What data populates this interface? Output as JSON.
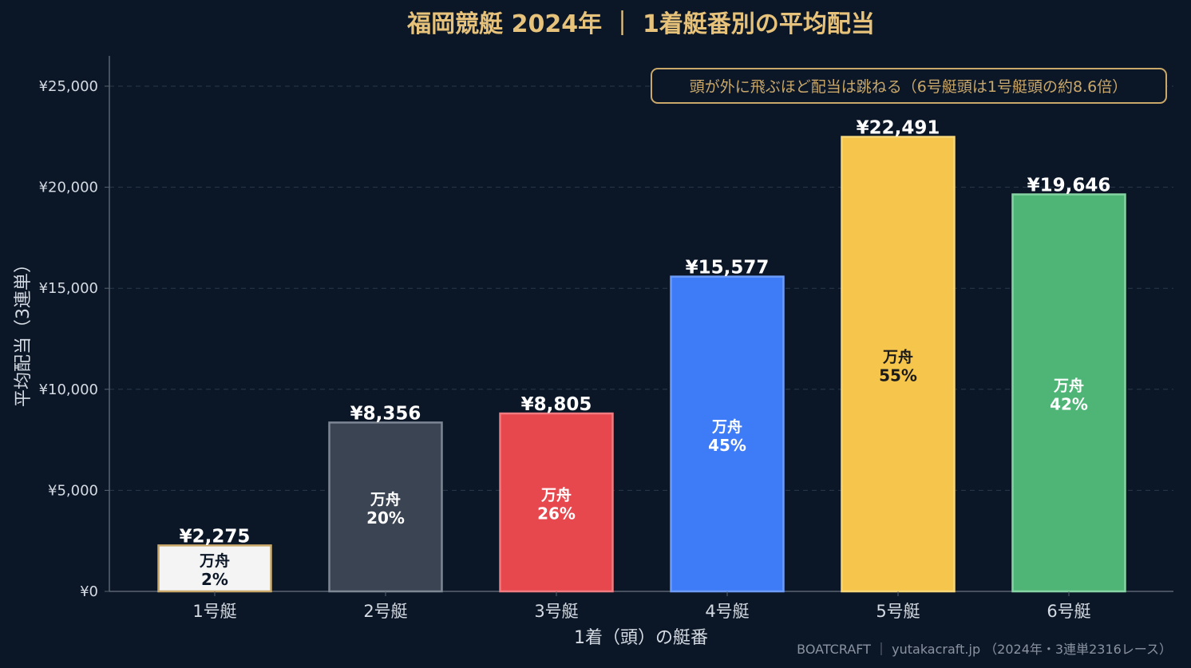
{
  "colors": {
    "background": "#0b1627",
    "title": "#e6c27a",
    "text": "#d5dbe3",
    "muted": "#8a93a0",
    "grid": "#2b3a4a",
    "axis": "#5a6470",
    "annotation_border": "#c9a86a",
    "annotation_text": "#c9a86a"
  },
  "chart_data": {
    "type": "bar",
    "title": "福岡競艇 2024年 ｜ 1着艇番別の平均配当",
    "xlabel": "1着（頭）の艇番",
    "ylabel": "平均配当（3連単）",
    "ylim": [
      0,
      26500
    ],
    "yticks": [
      0,
      5000,
      10000,
      15000,
      20000,
      25000
    ],
    "ytick_labels": [
      "¥0",
      "¥5,000",
      "¥10,000",
      "¥15,000",
      "¥20,000",
      "¥25,000"
    ],
    "grid": true,
    "categories": [
      "1号艇",
      "2号艇",
      "3号艇",
      "4号艇",
      "5号艇",
      "6号艇"
    ],
    "values": [
      2275,
      8356,
      8805,
      15577,
      22491,
      19646
    ],
    "value_labels": [
      "¥2,275",
      "¥8,356",
      "¥8,805",
      "¥15,577",
      "¥22,491",
      "¥19,646"
    ],
    "inner_label_heading": "万舟",
    "inner_label_values": [
      "2%",
      "20%",
      "26%",
      "45%",
      "55%",
      "42%"
    ],
    "bar_colors": [
      "#f4f4f4",
      "#3a4453",
      "#e6484e",
      "#3e7bf6",
      "#f5c54c",
      "#4fb577"
    ],
    "bar_borders": [
      "#c9a86a",
      "#7d8794",
      "#f07b80",
      "#6d9cf8",
      "#f7d678",
      "#86d3a3"
    ],
    "inner_text_colors": [
      "#0b1627",
      "#ffffff",
      "#ffffff",
      "#ffffff",
      "#1a1a1a",
      "#ffffff"
    ],
    "annotation": "頭が外に飛ぶほど配当は跳ねる（6号艇頭は1号艇頭の約8.6倍）",
    "footer": "BOATCRAFT ｜ yutakacraft.jp （2024年・3連単2316レース）"
  }
}
